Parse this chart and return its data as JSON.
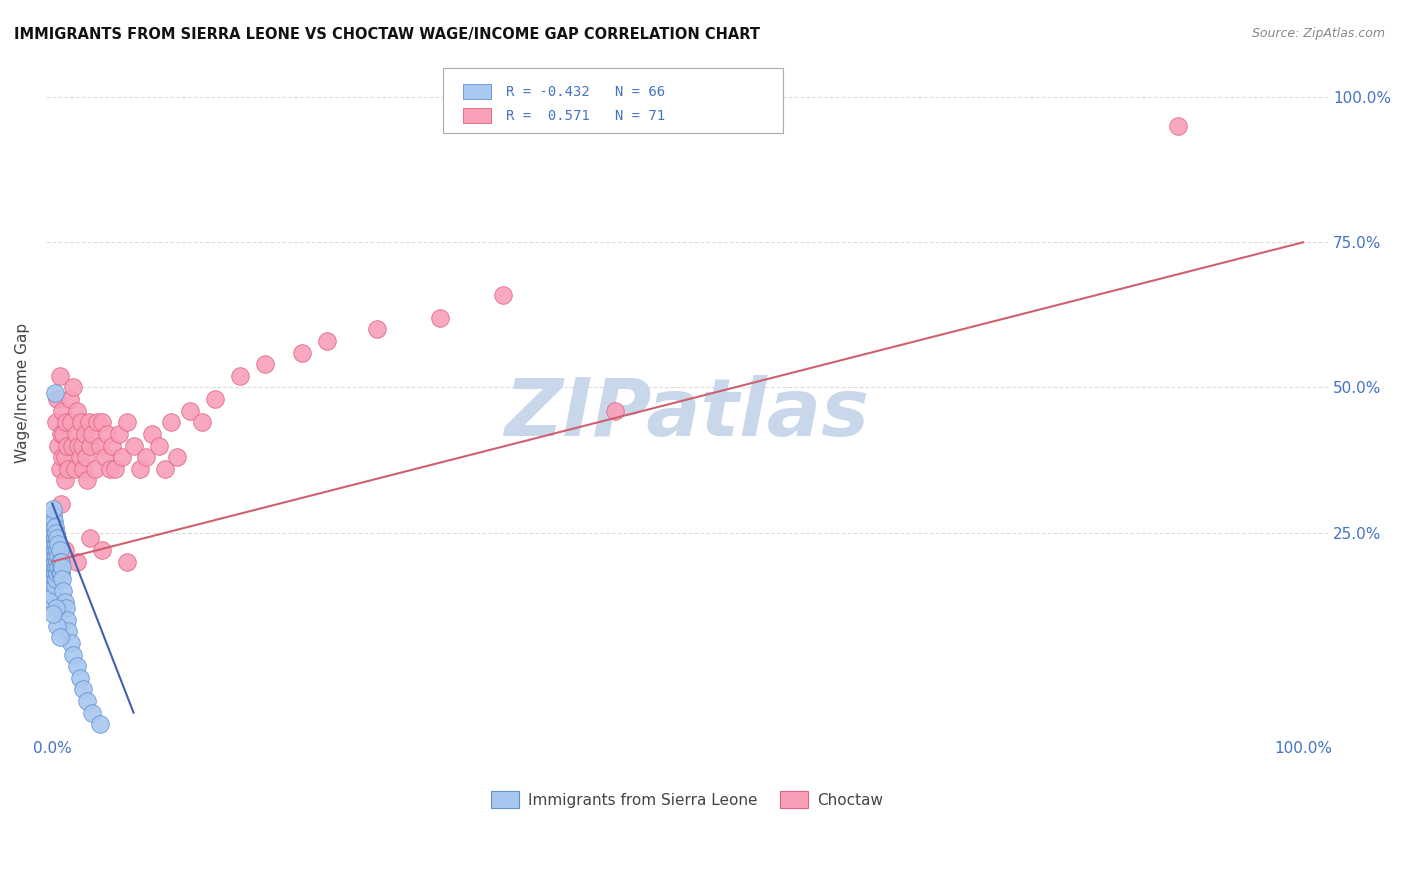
{
  "title": "IMMIGRANTS FROM SIERRA LEONE VS CHOCTAW WAGE/INCOME GAP CORRELATION CHART",
  "source": "Source: ZipAtlas.com",
  "ylabel": "Wage/Income Gap",
  "color_blue_fill": "#a8c8f0",
  "color_blue_edge": "#6090d0",
  "color_pink_fill": "#f8a0b8",
  "color_pink_edge": "#e06080",
  "color_blue_line": "#4060b0",
  "color_pink_line": "#d06070",
  "watermark": "ZIPatlas",
  "watermark_color": "#c8d8ea",
  "background_color": "#ffffff",
  "grid_color": "#dddddd",
  "axis_color": "#4472c4",
  "pink_line_x0": 0.0,
  "pink_line_x1": 1.0,
  "pink_line_y0": 0.2,
  "pink_line_y1": 0.75,
  "blue_line_x0": 0.0,
  "blue_line_x1": 0.065,
  "blue_line_y0": 0.3,
  "blue_line_y1": -0.06,
  "xlim": [
    -0.005,
    1.02
  ],
  "ylim": [
    -0.1,
    1.08
  ],
  "scatter_blue_x": [
    0.0005,
    0.0005,
    0.0005,
    0.0005,
    0.0005,
    0.0005,
    0.0005,
    0.0005,
    0.001,
    0.001,
    0.001,
    0.001,
    0.001,
    0.001,
    0.001,
    0.001,
    0.0015,
    0.0015,
    0.0015,
    0.0015,
    0.0015,
    0.0015,
    0.002,
    0.002,
    0.002,
    0.002,
    0.002,
    0.002,
    0.003,
    0.003,
    0.003,
    0.003,
    0.003,
    0.004,
    0.004,
    0.004,
    0.004,
    0.005,
    0.005,
    0.005,
    0.006,
    0.006,
    0.006,
    0.007,
    0.007,
    0.008,
    0.008,
    0.009,
    0.01,
    0.011,
    0.012,
    0.013,
    0.015,
    0.017,
    0.02,
    0.022,
    0.025,
    0.028,
    0.032,
    0.038,
    0.002,
    0.003,
    0.004,
    0.006,
    0.0005,
    0.0005
  ],
  "scatter_blue_y": [
    0.27,
    0.25,
    0.23,
    0.21,
    0.19,
    0.17,
    0.15,
    0.13,
    0.28,
    0.26,
    0.24,
    0.22,
    0.2,
    0.18,
    0.16,
    0.14,
    0.27,
    0.25,
    0.23,
    0.21,
    0.19,
    0.17,
    0.26,
    0.24,
    0.22,
    0.2,
    0.18,
    0.16,
    0.25,
    0.23,
    0.21,
    0.19,
    0.17,
    0.24,
    0.22,
    0.2,
    0.18,
    0.23,
    0.21,
    0.19,
    0.22,
    0.2,
    0.18,
    0.2,
    0.18,
    0.19,
    0.17,
    0.15,
    0.13,
    0.12,
    0.1,
    0.08,
    0.06,
    0.04,
    0.02,
    0.0,
    -0.02,
    -0.04,
    -0.06,
    -0.08,
    0.49,
    0.12,
    0.09,
    0.07,
    0.29,
    0.11
  ],
  "scatter_pink_x": [
    0.003,
    0.004,
    0.005,
    0.006,
    0.006,
    0.007,
    0.007,
    0.008,
    0.008,
    0.009,
    0.01,
    0.01,
    0.011,
    0.012,
    0.013,
    0.014,
    0.015,
    0.016,
    0.017,
    0.018,
    0.019,
    0.02,
    0.021,
    0.022,
    0.023,
    0.024,
    0.025,
    0.026,
    0.027,
    0.028,
    0.029,
    0.03,
    0.032,
    0.034,
    0.036,
    0.038,
    0.04,
    0.042,
    0.044,
    0.046,
    0.048,
    0.05,
    0.053,
    0.056,
    0.06,
    0.065,
    0.07,
    0.075,
    0.08,
    0.085,
    0.09,
    0.095,
    0.1,
    0.11,
    0.12,
    0.13,
    0.15,
    0.17,
    0.2,
    0.22,
    0.26,
    0.31,
    0.36,
    0.006,
    0.01,
    0.02,
    0.03,
    0.04,
    0.06,
    0.9,
    0.45
  ],
  "scatter_pink_y": [
    0.44,
    0.48,
    0.4,
    0.36,
    0.52,
    0.42,
    0.3,
    0.46,
    0.38,
    0.42,
    0.38,
    0.34,
    0.44,
    0.4,
    0.36,
    0.48,
    0.44,
    0.4,
    0.5,
    0.36,
    0.42,
    0.46,
    0.4,
    0.38,
    0.44,
    0.4,
    0.36,
    0.42,
    0.38,
    0.34,
    0.44,
    0.4,
    0.42,
    0.36,
    0.44,
    0.4,
    0.44,
    0.38,
    0.42,
    0.36,
    0.4,
    0.36,
    0.42,
    0.38,
    0.44,
    0.4,
    0.36,
    0.38,
    0.42,
    0.4,
    0.36,
    0.44,
    0.38,
    0.46,
    0.44,
    0.48,
    0.52,
    0.54,
    0.56,
    0.58,
    0.6,
    0.62,
    0.66,
    0.2,
    0.22,
    0.2,
    0.24,
    0.22,
    0.2,
    0.95,
    0.46
  ]
}
